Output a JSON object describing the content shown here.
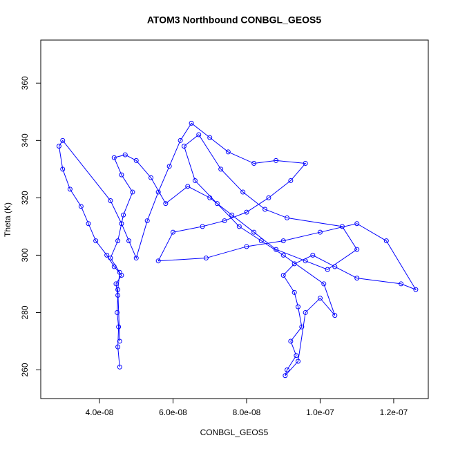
{
  "chart_data": {
    "type": "line",
    "title": "ATOM3 Northbound CONBGL_GEOS5",
    "xlabel": "CONBGL_GEOS5",
    "ylabel": "Theta (K)",
    "color": "#0000ff",
    "xlim": [
      2.404e-08,
      1.294e-07
    ],
    "ylim": [
      250,
      375
    ],
    "xticks": [
      {
        "value": 4e-08,
        "label": "4.0e-08"
      },
      {
        "value": 6e-08,
        "label": "6.0e-08"
      },
      {
        "value": 8e-08,
        "label": "8.0e-08"
      },
      {
        "value": 1e-07,
        "label": "1.0e-07"
      },
      {
        "value": 1.2e-07,
        "label": "1.2e-07"
      }
    ],
    "yticks": [
      260,
      280,
      300,
      320,
      340,
      360
    ],
    "x": [
      4.55e-08,
      4.5e-08,
      4.52e-08,
      4.48e-08,
      4.5e-08,
      4.45e-08,
      4.6e-08,
      4.4e-08,
      4.2e-08,
      3.9e-08,
      3.7e-08,
      3.5e-08,
      3.2e-08,
      3e-08,
      2.9e-08,
      3e-08,
      4.3e-08,
      4.6e-08,
      4.8e-08,
      5e-08,
      5.3e-08,
      5.6e-08,
      5.9e-08,
      6.2e-08,
      6.5e-08,
      7e-08,
      7.5e-08,
      8.2e-08,
      8.8e-08,
      9.6e-08,
      9.2e-08,
      8.6e-08,
      8e-08,
      7.4e-08,
      6.8e-08,
      6e-08,
      5.6e-08,
      6.9e-08,
      8e-08,
      9e-08,
      1e-07,
      1.1e-07,
      1.18e-07,
      1.26e-07,
      1.22e-07,
      1.1e-07,
      1.04e-07,
      9.8e-08,
      9.3e-08,
      9e-08,
      9.3e-08,
      9.4e-08,
      9.5e-08,
      9.2e-08,
      9.35e-08,
      9.1e-08,
      9.05e-08,
      9.4e-08,
      9.6e-08,
      1e-07,
      1.04e-07,
      1.01e-07,
      9e-08,
      8.4e-08,
      7.8e-08,
      7.2e-08,
      6.6e-08,
      6.3e-08,
      6.7e-08,
      7.3e-08,
      7.9e-08,
      8.5e-08,
      9.1e-08,
      1.06e-07,
      1.1e-07,
      1.02e-07,
      9.6e-08,
      8.8e-08,
      8.2e-08,
      7.6e-08,
      7e-08,
      6.4e-08,
      5.8e-08,
      5.4e-08,
      5e-08,
      4.7e-08,
      4.4e-08,
      4.6e-08,
      4.9e-08,
      4.65e-08,
      4.5e-08,
      4.3e-08,
      4.55e-08,
      4.5e-08,
      4.55e-08
    ],
    "values": [
      261,
      268,
      275,
      280,
      286,
      290,
      293,
      296,
      300,
      305,
      311,
      317,
      323,
      330,
      338,
      340,
      319,
      311,
      305,
      299,
      312,
      322,
      331,
      340,
      346,
      341,
      336,
      332,
      333,
      332,
      326,
      320,
      315,
      312,
      310,
      308,
      298,
      299,
      303,
      305,
      308,
      311,
      305,
      288,
      290,
      292,
      296,
      300,
      297,
      293,
      287,
      282,
      275,
      270,
      265,
      260,
      258,
      263,
      280,
      285,
      279,
      290,
      300,
      305,
      310,
      318,
      326,
      338,
      342,
      330,
      322,
      316,
      313,
      310,
      302,
      295,
      298,
      302,
      308,
      314,
      320,
      324,
      318,
      327,
      333,
      335,
      334,
      328,
      322,
      314,
      305,
      299,
      294,
      288,
      270
    ]
  }
}
